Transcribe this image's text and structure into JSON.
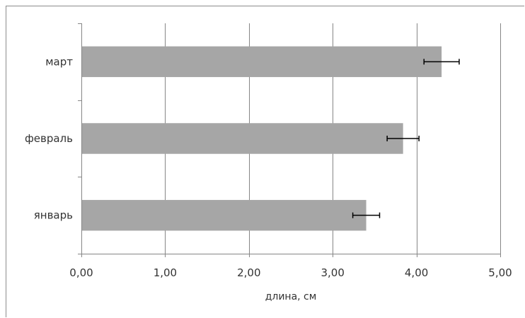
{
  "chart_data": {
    "type": "bar",
    "orientation": "horizontal",
    "categories": [
      "январь",
      "февраль",
      "март"
    ],
    "values": [
      3.4,
      3.84,
      4.3
    ],
    "error": [
      0.16,
      0.19,
      0.21
    ],
    "xlabel": "длина, см",
    "ylabel": "",
    "xlim": [
      0,
      5
    ],
    "xticks": [
      0,
      1,
      2,
      3,
      4,
      5
    ],
    "xtick_labels": [
      "0,00",
      "1,00",
      "2,00",
      "3,00",
      "4,00",
      "5,00"
    ],
    "grid": "vertical",
    "legend": "none",
    "bar_color": "#a6a6a6",
    "gridline_color": "#868686",
    "axis_color": "#868686",
    "errorbar_color": "#000000"
  }
}
